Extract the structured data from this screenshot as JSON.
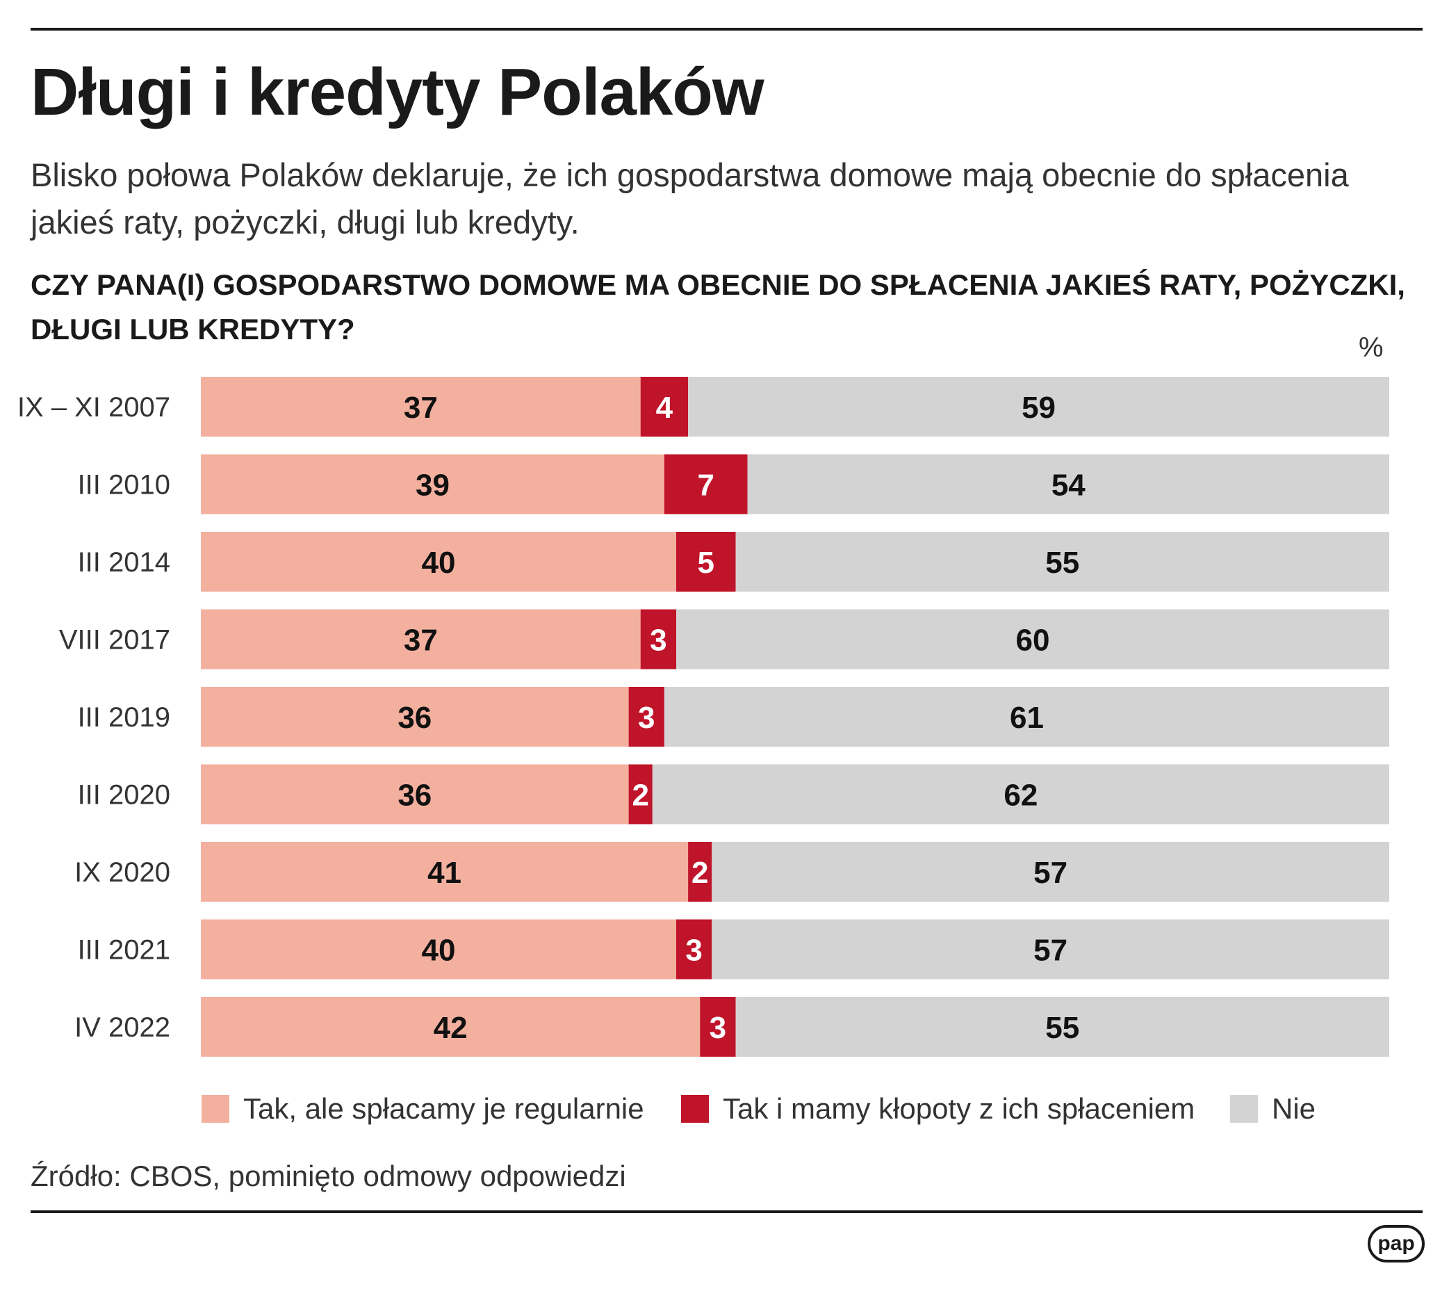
{
  "header": {
    "title": "Długi i kredyty Polaków",
    "subtitle": "Blisko połowa Polaków deklaruje, że ich gospodarstwa domowe mają obecnie do spłacenia jakieś raty, pożyczki, długi lub kredyty.",
    "question": "CZY PANA(I) GOSPODARSTWO DOMOWE MA OBECNIE DO SPŁACENIA JAKIEŚ RATY, POŻYCZKI, DŁUGI LUB KREDYTY?"
  },
  "colors": {
    "tak_regularnie": "#f4b09f",
    "tak_klopoty": "#c0142a",
    "nie": "#d3d3d3"
  },
  "chart_data": {
    "type": "bar",
    "orientation": "horizontal",
    "stacked": true,
    "unit": "%",
    "xlim": [
      0,
      100
    ],
    "categories": [
      "IX – XI 2007",
      "III 2010",
      "III 2014",
      "VIII 2017",
      "III 2019",
      "III 2020",
      "IX 2020",
      "III 2021",
      "IV 2022"
    ],
    "series": [
      {
        "name": "Tak, ale spłacamy je regularnie",
        "color": "#f4b09f",
        "values": [
          37,
          39,
          40,
          37,
          36,
          36,
          41,
          40,
          42
        ]
      },
      {
        "name": "Tak i mamy kłopoty z ich spłaceniem",
        "color": "#c0142a",
        "values": [
          4,
          7,
          5,
          3,
          3,
          2,
          2,
          3,
          3
        ]
      },
      {
        "name": "Nie",
        "color": "#d3d3d3",
        "values": [
          59,
          54,
          55,
          60,
          61,
          62,
          57,
          57,
          55
        ]
      }
    ],
    "legend_position": "bottom",
    "grid": false
  },
  "footer": {
    "source": "Źródło: CBOS, pominięto odmowy odpowiedzi",
    "logo_text": "pap"
  }
}
